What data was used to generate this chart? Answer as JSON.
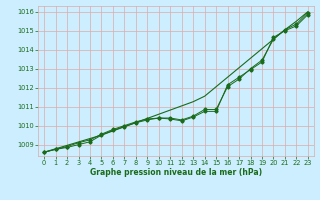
{
  "title": "Graphe pression niveau de la mer (hPa)",
  "bg_color": "#cceeff",
  "grid_color": "#ddaaaa",
  "line_color": "#1a6b1a",
  "xlim": [
    -0.5,
    23.5
  ],
  "ylim": [
    1008.4,
    1016.3
  ],
  "xticks": [
    0,
    1,
    2,
    3,
    4,
    5,
    6,
    7,
    8,
    9,
    10,
    11,
    12,
    13,
    14,
    15,
    16,
    17,
    18,
    19,
    20,
    21,
    22,
    23
  ],
  "yticks": [
    1009,
    1010,
    1011,
    1012,
    1013,
    1014,
    1015,
    1016
  ],
  "hours": [
    0,
    1,
    2,
    3,
    4,
    5,
    6,
    7,
    8,
    9,
    10,
    11,
    12,
    13,
    14,
    15,
    16,
    17,
    18,
    19,
    20,
    21,
    22,
    23
  ],
  "measured": [
    1008.6,
    1008.75,
    1008.85,
    1009.0,
    1009.15,
    1009.5,
    1009.75,
    1009.95,
    1010.15,
    1010.3,
    1010.4,
    1010.35,
    1010.25,
    1010.45,
    1010.75,
    1010.75,
    1012.15,
    1012.55,
    1012.95,
    1013.35,
    1014.65,
    1015.0,
    1015.25,
    1015.85
  ],
  "line2": [
    1008.6,
    1008.75,
    1008.9,
    1009.1,
    1009.25,
    1009.55,
    1009.8,
    1010.0,
    1010.2,
    1010.35,
    1010.4,
    1010.4,
    1010.3,
    1010.5,
    1010.85,
    1010.85,
    1012.05,
    1012.45,
    1013.0,
    1013.45,
    1014.55,
    1015.05,
    1015.35,
    1015.95
  ],
  "trend": [
    1008.6,
    1008.78,
    1008.96,
    1009.14,
    1009.32,
    1009.5,
    1009.72,
    1009.94,
    1010.16,
    1010.38,
    1010.6,
    1010.82,
    1011.04,
    1011.26,
    1011.55,
    1012.05,
    1012.55,
    1013.05,
    1013.55,
    1014.05,
    1014.55,
    1015.05,
    1015.5,
    1016.0
  ],
  "xlabel_fontsize": 5.5,
  "tick_fontsize": 4.8
}
